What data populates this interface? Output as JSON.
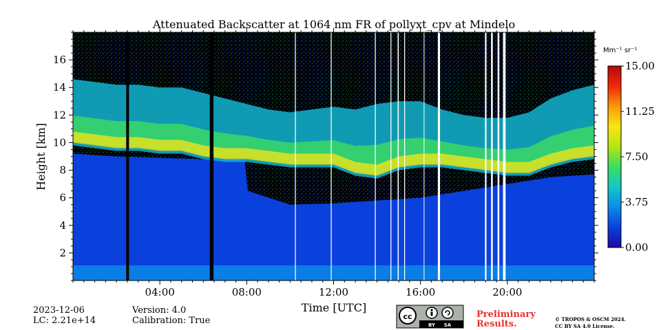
{
  "chart_data": {
    "type": "heatmap",
    "title": "Attenuated Backscatter at 1064 nm FR of pollyxt_cpv at Mindelo",
    "xlabel": "Time [UTC]",
    "ylabel": "Height [km]",
    "xlim": [
      0,
      24
    ],
    "ylim": [
      0,
      18
    ],
    "x_ticks": [
      {
        "value": 4,
        "label": "04:00"
      },
      {
        "value": 8,
        "label": "08:00"
      },
      {
        "value": 12,
        "label": "12:00"
      },
      {
        "value": 16,
        "label": "16:00"
      },
      {
        "value": 20,
        "label": "20:00"
      }
    ],
    "y_ticks": [
      {
        "value": 2,
        "label": "2"
      },
      {
        "value": 4,
        "label": "4"
      },
      {
        "value": 6,
        "label": "6"
      },
      {
        "value": 8,
        "label": "8"
      },
      {
        "value": 10,
        "label": "10"
      },
      {
        "value": 12,
        "label": "12"
      },
      {
        "value": 14,
        "label": "14"
      },
      {
        "value": 16,
        "label": "16"
      }
    ],
    "colorbar": {
      "unit_label": "Mm⁻¹ sr⁻¹",
      "range": [
        0,
        15
      ],
      "ticks": [
        {
          "value": 0,
          "label": "0.00"
        },
        {
          "value": 3.75,
          "label": "3.75"
        },
        {
          "value": 7.5,
          "label": "7.50"
        },
        {
          "value": 11.25,
          "label": "11.25"
        },
        {
          "value": 15,
          "label": "15.00"
        }
      ],
      "colors": [
        "#1a0aa8",
        "#0a40dc",
        "#0a8ce8",
        "#12c8c8",
        "#3cdc60",
        "#b4e614",
        "#fae614",
        "#fa9a0a",
        "#f0280a",
        "#b40a0a"
      ]
    },
    "background_color": "#0a40dc",
    "data_gaps_hours": [
      [
        2.45,
        2.58
      ],
      [
        6.3,
        6.47
      ],
      [
        10.22,
        10.26
      ],
      [
        11.87,
        11.91
      ],
      [
        13.9,
        13.94
      ],
      [
        14.62,
        14.66
      ],
      [
        14.95,
        15.0
      ],
      [
        15.25,
        15.29
      ],
      [
        16.15,
        16.18
      ],
      [
        16.8,
        16.9
      ],
      [
        18.97,
        19.04
      ],
      [
        19.25,
        19.33
      ],
      [
        19.55,
        19.63
      ],
      [
        19.8,
        19.92
      ]
    ],
    "boundary_layer_top_km": 1.1,
    "aerosol_layer_top_km": {
      "x": [
        0,
        2,
        4,
        6,
        7.9,
        8.05,
        10,
        12,
        14,
        16,
        18,
        20,
        22,
        24
      ],
      "y": [
        9.2,
        9.0,
        8.9,
        8.8,
        8.8,
        6.5,
        5.5,
        5.6,
        5.8,
        6.0,
        6.5,
        7.0,
        7.5,
        7.7
      ]
    },
    "cloud_layer_km": {
      "x": [
        0,
        1,
        2,
        3,
        4,
        5,
        6,
        7,
        8,
        9,
        10,
        11,
        12,
        13,
        14,
        15,
        16,
        17,
        18,
        19,
        20,
        21,
        22,
        23,
        24
      ],
      "base": [
        9.8,
        9.6,
        9.4,
        9.4,
        9.2,
        9.2,
        8.8,
        8.6,
        8.6,
        8.4,
        8.2,
        8.2,
        8.2,
        7.6,
        7.4,
        8.0,
        8.2,
        8.2,
        8.0,
        7.8,
        7.6,
        7.6,
        8.2,
        8.6,
        8.8
      ],
      "top": [
        14.6,
        14.4,
        14.2,
        14.2,
        14.0,
        14.0,
        13.6,
        13.2,
        12.8,
        12.4,
        12.2,
        12.4,
        12.6,
        12.4,
        12.8,
        13.0,
        13.0,
        12.4,
        12.0,
        11.8,
        11.8,
        12.2,
        13.2,
        13.8,
        14.2
      ]
    },
    "noise_top_km": 18
  },
  "footer": {
    "date": "2023-12-06",
    "lc": "LC: 2.21e+14",
    "version": "Version: 4.0",
    "calibration": "Calibration: True",
    "preliminary_line1": "Preliminary",
    "preliminary_line2": "Results.",
    "copyright_line1": "© TROPOS & OSCM 2024.",
    "copyright_line2": "CC BY SA 4.0 License.",
    "license_badge": {
      "by": "BY",
      "sa": "SA"
    }
  }
}
